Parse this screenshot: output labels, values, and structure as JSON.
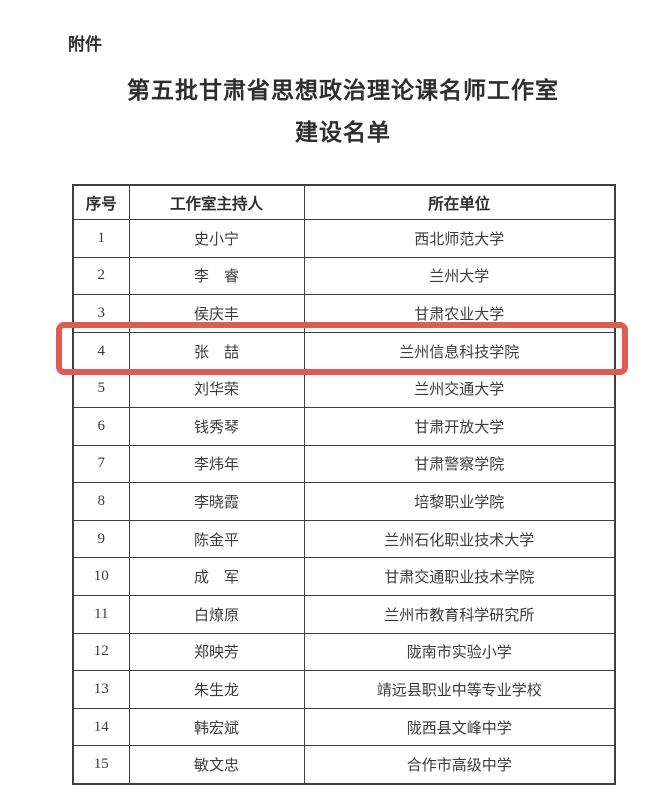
{
  "page": {
    "attachment_label": "附件",
    "title_line1": "第五批甘肃省思想政治理论课名师工作室",
    "title_line2": "建设名单"
  },
  "table": {
    "headers": [
      "序号",
      "工作室主持人",
      "所在单位"
    ],
    "rows": [
      {
        "no": "1",
        "host": "史小宁",
        "unit": "西北师范大学"
      },
      {
        "no": "2",
        "host": "李　睿",
        "unit": "兰州大学"
      },
      {
        "no": "3",
        "host": "侯庆丰",
        "unit": "甘肃农业大学"
      },
      {
        "no": "4",
        "host": "张　喆",
        "unit": "兰州信息科技学院"
      },
      {
        "no": "5",
        "host": "刘华荣",
        "unit": "兰州交通大学"
      },
      {
        "no": "6",
        "host": "钱秀琴",
        "unit": "甘肃开放大学"
      },
      {
        "no": "7",
        "host": "李炜年",
        "unit": "甘肃警察学院"
      },
      {
        "no": "8",
        "host": "李晓霞",
        "unit": "培黎职业学院"
      },
      {
        "no": "9",
        "host": "陈金平",
        "unit": "兰州石化职业技术大学"
      },
      {
        "no": "10",
        "host": "成　军",
        "unit": "甘肃交通职业技术学院"
      },
      {
        "no": "11",
        "host": "白燎原",
        "unit": "兰州市教育科学研究所"
      },
      {
        "no": "12",
        "host": "郑映芳",
        "unit": "陇南市实验小学"
      },
      {
        "no": "13",
        "host": "朱生龙",
        "unit": "靖远县职业中等专业学校"
      },
      {
        "no": "14",
        "host": "韩宏斌",
        "unit": "陇西县文峰中学"
      },
      {
        "no": "15",
        "host": "敏文忠",
        "unit": "合作市高级中学"
      }
    ],
    "highlighted_row_no": "4"
  },
  "colors": {
    "highlight_border": "#e05b52",
    "text": "#3c3c3c",
    "table_border": "#3f3f3f"
  }
}
